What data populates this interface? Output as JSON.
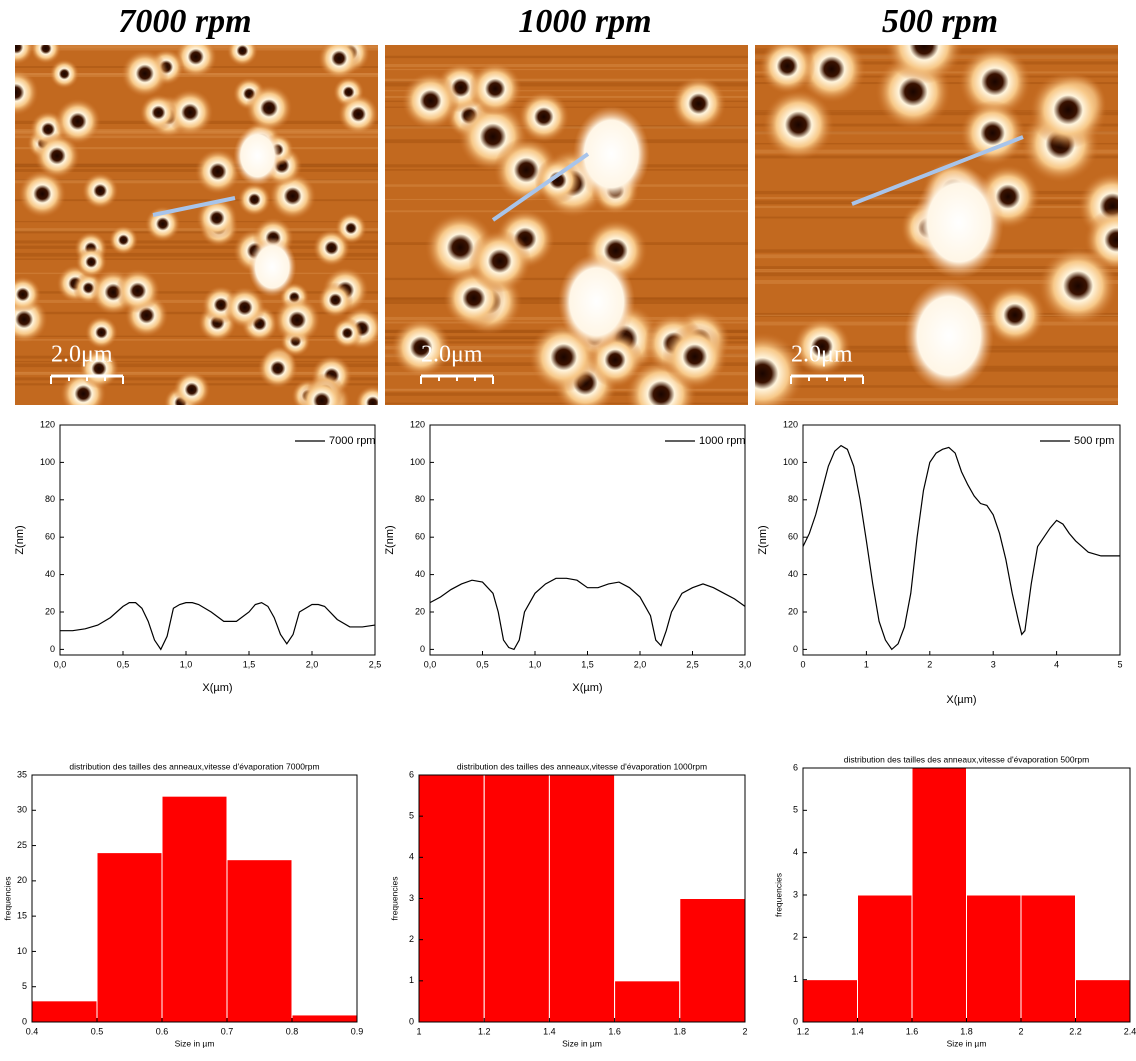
{
  "panels": [
    {
      "title": "7000 rpm",
      "scale_bar": "2.0μm"
    },
    {
      "title": "1000 rpm",
      "scale_bar": "2.0μm"
    },
    {
      "title": "500 rpm",
      "scale_bar": "2.0μm"
    }
  ],
  "chart_data": [
    {
      "type": "line",
      "xlabel": "X(µm)",
      "ylabel": "Z(nm)",
      "x": [
        0,
        0.1,
        0.2,
        0.3,
        0.4,
        0.5,
        0.55,
        0.6,
        0.65,
        0.7,
        0.75,
        0.8,
        0.85,
        0.9,
        0.95,
        1.0,
        1.05,
        1.1,
        1.2,
        1.3,
        1.4,
        1.5,
        1.55,
        1.6,
        1.65,
        1.7,
        1.75,
        1.8,
        1.85,
        1.9,
        2.0,
        2.05,
        2.1,
        2.2,
        2.3,
        2.4,
        2.5
      ],
      "series": [
        {
          "name": "7000 rpm",
          "color": "#000000",
          "values": [
            10,
            10,
            11,
            13,
            17,
            23,
            25,
            25,
            22,
            15,
            5,
            0,
            7,
            22,
            24,
            25,
            25,
            24,
            20,
            15,
            15,
            20,
            24,
            25,
            23,
            17,
            8,
            3,
            8,
            20,
            24,
            24,
            23,
            16,
            12,
            12,
            13
          ]
        }
      ],
      "xlim": [
        0,
        2.5
      ],
      "xticks": [
        {
          "value": 0,
          "label": "0,0"
        },
        {
          "value": 0.5,
          "label": "0,5"
        },
        {
          "value": 1,
          "label": "1,0"
        },
        {
          "value": 1.5,
          "label": "1,5"
        },
        {
          "value": 2,
          "label": "2,0"
        },
        {
          "value": 2.5,
          "label": "2,5"
        }
      ],
      "ylim": [
        -3,
        120
      ],
      "yticks": [
        0,
        20,
        40,
        60,
        80,
        100,
        120
      ],
      "legend": "top-right"
    },
    {
      "type": "line",
      "xlabel": "X(µm)",
      "ylabel": "Z(nm)",
      "x": [
        0,
        0.1,
        0.2,
        0.3,
        0.4,
        0.5,
        0.6,
        0.65,
        0.7,
        0.75,
        0.8,
        0.85,
        0.9,
        1.0,
        1.1,
        1.2,
        1.3,
        1.4,
        1.5,
        1.6,
        1.7,
        1.8,
        1.9,
        2.0,
        2.1,
        2.15,
        2.2,
        2.25,
        2.3,
        2.4,
        2.5,
        2.6,
        2.7,
        2.8,
        2.9,
        3.0
      ],
      "series": [
        {
          "name": "1000 rpm",
          "color": "#000000",
          "values": [
            25,
            28,
            32,
            35,
            37,
            36,
            30,
            20,
            5,
            1,
            0,
            5,
            20,
            30,
            35,
            38,
            38,
            37,
            33,
            33,
            35,
            36,
            33,
            28,
            18,
            5,
            2,
            10,
            20,
            30,
            33,
            35,
            33,
            30,
            27,
            23
          ]
        }
      ],
      "xlim": [
        0,
        3
      ],
      "xticks": [
        {
          "value": 0,
          "label": "0,0"
        },
        {
          "value": 0.5,
          "label": "0,5"
        },
        {
          "value": 1,
          "label": "1,0"
        },
        {
          "value": 1.5,
          "label": "1,5"
        },
        {
          "value": 2,
          "label": "2,0"
        },
        {
          "value": 2.5,
          "label": "2,5"
        },
        {
          "value": 3,
          "label": "3,0"
        }
      ],
      "ylim": [
        -3,
        120
      ],
      "yticks": [
        0,
        20,
        40,
        60,
        80,
        100,
        120
      ],
      "legend": "top-right"
    },
    {
      "type": "line",
      "xlabel": "X(µm)",
      "ylabel": "Z(nm)",
      "x": [
        0,
        0.1,
        0.2,
        0.3,
        0.4,
        0.5,
        0.6,
        0.7,
        0.8,
        0.9,
        1.0,
        1.1,
        1.2,
        1.3,
        1.4,
        1.5,
        1.6,
        1.7,
        1.8,
        1.9,
        2.0,
        2.1,
        2.2,
        2.3,
        2.4,
        2.5,
        2.6,
        2.7,
        2.8,
        2.9,
        3.0,
        3.1,
        3.2,
        3.3,
        3.4,
        3.45,
        3.5,
        3.6,
        3.7,
        3.8,
        3.9,
        4.0,
        4.1,
        4.2,
        4.3,
        4.4,
        4.5,
        4.6,
        4.7,
        4.8,
        4.9,
        5.0
      ],
      "series": [
        {
          "name": "500 rpm",
          "color": "#000000",
          "values": [
            55,
            62,
            72,
            85,
            98,
            106,
            109,
            107,
            98,
            80,
            58,
            35,
            15,
            5,
            0,
            3,
            12,
            30,
            60,
            85,
            100,
            105,
            107,
            108,
            105,
            95,
            88,
            82,
            78,
            77,
            72,
            62,
            48,
            30,
            15,
            8,
            10,
            35,
            55,
            60,
            65,
            69,
            67,
            62,
            58,
            55,
            52,
            51,
            50,
            50,
            50,
            50
          ]
        }
      ],
      "xlim": [
        0,
        5
      ],
      "xticks": [
        0,
        1,
        2,
        3,
        4,
        5
      ],
      "ylim": [
        -3,
        120
      ],
      "yticks": [
        0,
        20,
        40,
        60,
        80,
        100,
        120
      ],
      "legend": "top-right"
    },
    {
      "type": "histogram",
      "title": "distribution des tailles des anneaux,vitesse d'évaporation 7000rpm",
      "xlabel": "Size in µm",
      "ylabel": "frequencies",
      "color": "#ff0000",
      "bins": [
        0.4,
        0.5,
        0.6,
        0.7,
        0.8,
        0.9
      ],
      "values": [
        3,
        24,
        32,
        23,
        1
      ],
      "xlim": [
        0.4,
        0.9
      ],
      "xticks": [
        0.4,
        0.5,
        0.6,
        0.7,
        0.8,
        0.9
      ],
      "ylim": [
        0,
        35
      ],
      "yticks": [
        0,
        5,
        10,
        15,
        20,
        25,
        30,
        35
      ]
    },
    {
      "type": "histogram",
      "title": "distribution des tailles des anneaux,vitesse d'évaporation 1000rpm",
      "xlabel": "Size in µm",
      "ylabel": "frequencies",
      "color": "#ff0000",
      "bins": [
        1,
        1.2,
        1.4,
        1.6,
        1.8,
        2
      ],
      "values": [
        6,
        6,
        6,
        1,
        3
      ],
      "xlim": [
        1,
        2
      ],
      "xticks": [
        1,
        1.2,
        1.4,
        1.6,
        1.8,
        2
      ],
      "ylim": [
        0,
        6
      ],
      "yticks": [
        0,
        1,
        2,
        3,
        4,
        5,
        6
      ]
    },
    {
      "type": "histogram",
      "title": "distribution des tailles des anneaux,vitesse d'évaporation 500rpm",
      "xlabel": "Size in µm",
      "ylabel": "frequencies",
      "color": "#ff0000",
      "bins": [
        1.2,
        1.4,
        1.6,
        1.8,
        2,
        2.2,
        2.4
      ],
      "values": [
        1,
        3,
        6,
        3,
        3,
        1
      ],
      "xlim": [
        1.2,
        2.4
      ],
      "xticks": [
        1.2,
        1.4,
        1.6,
        1.8,
        2,
        2.2,
        2.4
      ],
      "ylim": [
        0,
        6
      ],
      "yticks": [
        0,
        1,
        2,
        3,
        4,
        5,
        6
      ]
    }
  ]
}
